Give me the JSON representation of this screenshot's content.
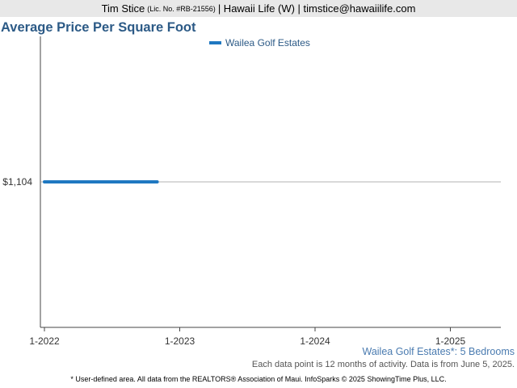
{
  "header": {
    "name": "Tim Stice",
    "license": "(Lic. No. #RB-21556)",
    "rest": "| Hawaii Life (W) | timstice@hawaiilife.com"
  },
  "chart_data": {
    "type": "line",
    "title": "Average Price Per Square Foot",
    "xlabel": "",
    "ylabel": "",
    "x_ticks": [
      "1-2022",
      "1-2023",
      "1-2024",
      "1-2025"
    ],
    "y_ticks": [
      "$1,104"
    ],
    "series": [
      {
        "name": "Wailea Golf Estates",
        "color": "#1f78c1",
        "x": [
          "1-2022",
          "11-2022"
        ],
        "values": [
          1104,
          1104
        ]
      }
    ],
    "reference_line": 1104,
    "legend_position": "top-center",
    "grid": false
  },
  "subtitle": "Wailea Golf Estates*: 5 Bedrooms",
  "note": "Each data point is 12 months of activity. Data is from June 5, 2025.",
  "footer": "* User-defined area. All data from the REALTORS® Association of Maui. InfoSparks © 2025 ShowingTime Plus, LLC."
}
